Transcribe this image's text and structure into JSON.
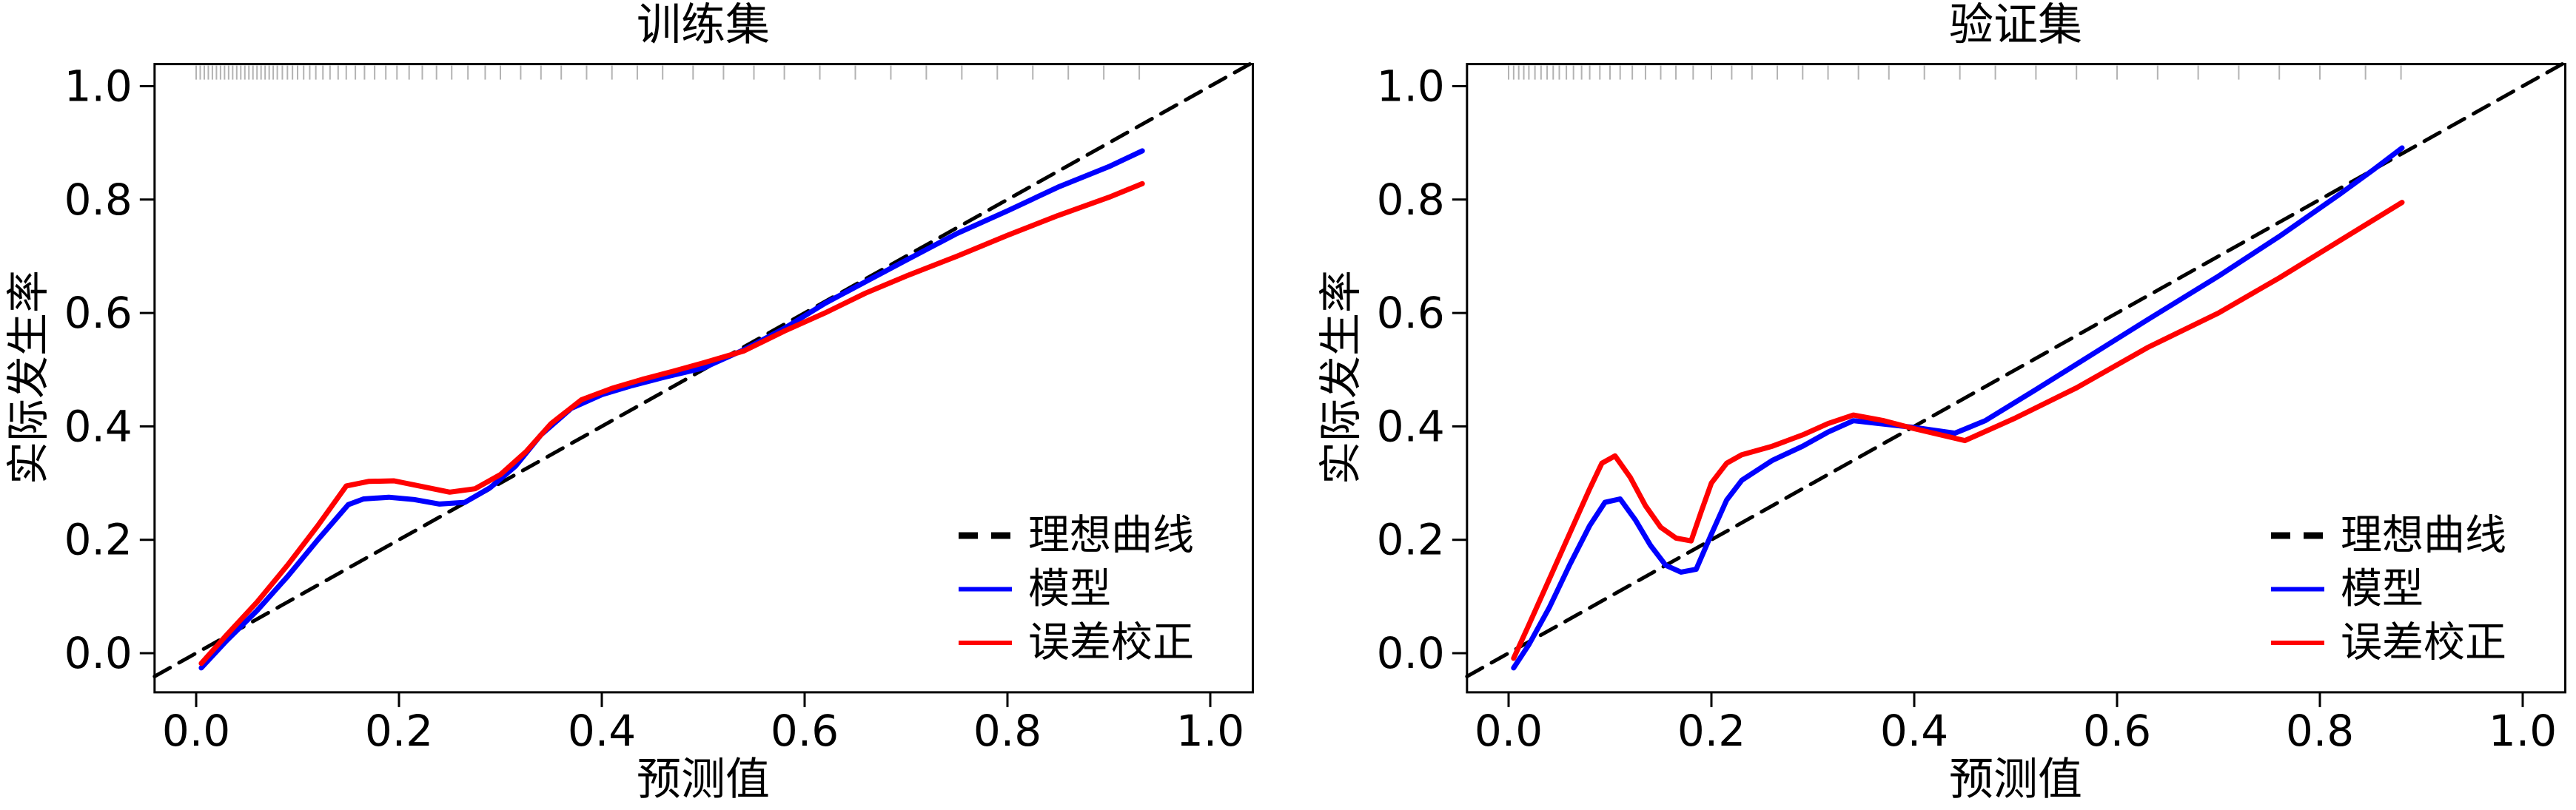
{
  "figure": {
    "background": "#ffffff",
    "colors": {
      "axis": "#000000",
      "ideal_line": "#000000",
      "model_line": "#0000ff",
      "corrected_line": "#ff0000",
      "rug": "#b3b3b3"
    },
    "legend_items": [
      {
        "label": "理想曲线",
        "style": "dashed",
        "color": "#000000"
      },
      {
        "label": "模型",
        "style": "solid",
        "color": "#0000ff"
      },
      {
        "label": "误差校正",
        "style": "solid",
        "color": "#ff0000"
      }
    ]
  },
  "chart_data": [
    {
      "type": "line",
      "title": "训练集",
      "xlabel": "预测值",
      "ylabel": "实际发生率",
      "xlim": [
        -0.041,
        1.042
      ],
      "ylim": [
        -0.069,
        1.039
      ],
      "x_ticks": [
        0.0,
        0.2,
        0.4,
        0.6,
        0.8,
        1.0
      ],
      "y_ticks": [
        0.0,
        0.2,
        0.4,
        0.6,
        0.8,
        1.0
      ],
      "grid": false,
      "legend_position": "bottom-right",
      "series": [
        {
          "name": "理想曲线",
          "style": "dashed",
          "color": "#000000",
          "points": [
            [
              -0.041,
              -0.041
            ],
            [
              1.039,
              1.039
            ]
          ]
        },
        {
          "name": "模型",
          "style": "solid",
          "color": "#0000ff",
          "points": [
            [
              0.005,
              -0.026
            ],
            [
              0.03,
              0.022
            ],
            [
              0.06,
              0.075
            ],
            [
              0.09,
              0.135
            ],
            [
              0.12,
              0.2
            ],
            [
              0.15,
              0.262
            ],
            [
              0.165,
              0.272
            ],
            [
              0.19,
              0.275
            ],
            [
              0.215,
              0.271
            ],
            [
              0.24,
              0.263
            ],
            [
              0.265,
              0.266
            ],
            [
              0.29,
              0.292
            ],
            [
              0.315,
              0.33
            ],
            [
              0.34,
              0.385
            ],
            [
              0.37,
              0.432
            ],
            [
              0.4,
              0.456
            ],
            [
              0.43,
              0.472
            ],
            [
              0.46,
              0.486
            ],
            [
              0.5,
              0.503
            ],
            [
              0.54,
              0.535
            ],
            [
              0.58,
              0.573
            ],
            [
              0.62,
              0.617
            ],
            [
              0.66,
              0.655
            ],
            [
              0.7,
              0.693
            ],
            [
              0.75,
              0.74
            ],
            [
              0.8,
              0.78
            ],
            [
              0.85,
              0.822
            ],
            [
              0.9,
              0.858
            ],
            [
              0.933,
              0.886
            ]
          ]
        },
        {
          "name": "误差校正",
          "style": "solid",
          "color": "#ff0000",
          "points": [
            [
              0.005,
              -0.018
            ],
            [
              0.03,
              0.032
            ],
            [
              0.06,
              0.09
            ],
            [
              0.09,
              0.155
            ],
            [
              0.12,
              0.225
            ],
            [
              0.148,
              0.295
            ],
            [
              0.17,
              0.303
            ],
            [
              0.195,
              0.304
            ],
            [
              0.22,
              0.295
            ],
            [
              0.25,
              0.284
            ],
            [
              0.275,
              0.29
            ],
            [
              0.3,
              0.315
            ],
            [
              0.325,
              0.355
            ],
            [
              0.35,
              0.405
            ],
            [
              0.38,
              0.447
            ],
            [
              0.41,
              0.467
            ],
            [
              0.44,
              0.483
            ],
            [
              0.47,
              0.497
            ],
            [
              0.5,
              0.512
            ],
            [
              0.54,
              0.533
            ],
            [
              0.58,
              0.568
            ],
            [
              0.62,
              0.6
            ],
            [
              0.66,
              0.635
            ],
            [
              0.7,
              0.665
            ],
            [
              0.75,
              0.7
            ],
            [
              0.8,
              0.737
            ],
            [
              0.85,
              0.772
            ],
            [
              0.9,
              0.804
            ],
            [
              0.933,
              0.828
            ]
          ]
        }
      ],
      "rug_x": [
        0.0,
        0.004,
        0.008,
        0.012,
        0.016,
        0.02,
        0.024,
        0.028,
        0.032,
        0.036,
        0.04,
        0.044,
        0.048,
        0.052,
        0.056,
        0.06,
        0.064,
        0.068,
        0.072,
        0.076,
        0.08,
        0.085,
        0.09,
        0.095,
        0.1,
        0.106,
        0.112,
        0.118,
        0.125,
        0.132,
        0.14,
        0.148,
        0.157,
        0.166,
        0.176,
        0.187,
        0.198,
        0.21,
        0.223,
        0.237,
        0.252,
        0.268,
        0.285,
        0.3,
        0.32,
        0.34,
        0.36,
        0.385,
        0.41,
        0.435,
        0.46,
        0.49,
        0.52,
        0.55,
        0.58,
        0.615,
        0.65,
        0.685,
        0.72,
        0.755,
        0.79,
        0.825,
        0.86,
        0.895,
        0.93
      ]
    },
    {
      "type": "line",
      "title": "验证集",
      "xlabel": "预测值",
      "ylabel": "实际发生率",
      "xlim": [
        -0.041,
        1.042
      ],
      "ylim": [
        -0.069,
        1.039
      ],
      "x_ticks": [
        0.0,
        0.2,
        0.4,
        0.6,
        0.8,
        1.0
      ],
      "y_ticks": [
        0.0,
        0.2,
        0.4,
        0.6,
        0.8,
        1.0
      ],
      "grid": false,
      "legend_position": "bottom-right",
      "series": [
        {
          "name": "理想曲线",
          "style": "dashed",
          "color": "#000000",
          "points": [
            [
              -0.041,
              -0.041
            ],
            [
              1.039,
              1.039
            ]
          ]
        },
        {
          "name": "模型",
          "style": "solid",
          "color": "#0000ff",
          "points": [
            [
              0.005,
              -0.026
            ],
            [
              0.02,
              0.015
            ],
            [
              0.04,
              0.08
            ],
            [
              0.06,
              0.155
            ],
            [
              0.08,
              0.225
            ],
            [
              0.095,
              0.266
            ],
            [
              0.11,
              0.272
            ],
            [
              0.125,
              0.235
            ],
            [
              0.14,
              0.19
            ],
            [
              0.155,
              0.155
            ],
            [
              0.17,
              0.143
            ],
            [
              0.185,
              0.148
            ],
            [
              0.2,
              0.21
            ],
            [
              0.215,
              0.27
            ],
            [
              0.23,
              0.305
            ],
            [
              0.26,
              0.34
            ],
            [
              0.29,
              0.365
            ],
            [
              0.315,
              0.39
            ],
            [
              0.34,
              0.41
            ],
            [
              0.37,
              0.404
            ],
            [
              0.4,
              0.398
            ],
            [
              0.44,
              0.388
            ],
            [
              0.47,
              0.41
            ],
            [
              0.52,
              0.465
            ],
            [
              0.58,
              0.532
            ],
            [
              0.63,
              0.588
            ],
            [
              0.7,
              0.665
            ],
            [
              0.76,
              0.735
            ],
            [
              0.82,
              0.81
            ],
            [
              0.853,
              0.853
            ],
            [
              0.881,
              0.891
            ]
          ]
        },
        {
          "name": "误差校正",
          "style": "solid",
          "color": "#ff0000",
          "points": [
            [
              0.005,
              -0.009
            ],
            [
              0.02,
              0.05
            ],
            [
              0.04,
              0.13
            ],
            [
              0.06,
              0.21
            ],
            [
              0.08,
              0.29
            ],
            [
              0.092,
              0.335
            ],
            [
              0.105,
              0.348
            ],
            [
              0.12,
              0.31
            ],
            [
              0.135,
              0.26
            ],
            [
              0.15,
              0.222
            ],
            [
              0.165,
              0.203
            ],
            [
              0.18,
              0.198
            ],
            [
              0.19,
              0.25
            ],
            [
              0.2,
              0.3
            ],
            [
              0.215,
              0.335
            ],
            [
              0.23,
              0.35
            ],
            [
              0.26,
              0.365
            ],
            [
              0.29,
              0.385
            ],
            [
              0.315,
              0.405
            ],
            [
              0.34,
              0.42
            ],
            [
              0.37,
              0.41
            ],
            [
              0.4,
              0.396
            ],
            [
              0.45,
              0.375
            ],
            [
              0.5,
              0.415
            ],
            [
              0.56,
              0.468
            ],
            [
              0.63,
              0.539
            ],
            [
              0.7,
              0.6
            ],
            [
              0.76,
              0.662
            ],
            [
              0.82,
              0.728
            ],
            [
              0.881,
              0.795
            ]
          ]
        }
      ],
      "rug_x": [
        0.0,
        0.005,
        0.01,
        0.015,
        0.02,
        0.026,
        0.032,
        0.038,
        0.044,
        0.05,
        0.057,
        0.064,
        0.072,
        0.08,
        0.09,
        0.1,
        0.11,
        0.122,
        0.135,
        0.15,
        0.165,
        0.182,
        0.2,
        0.22,
        0.24,
        0.265,
        0.29,
        0.315,
        0.345,
        0.375,
        0.41,
        0.445,
        0.48,
        0.52,
        0.56,
        0.6,
        0.64,
        0.68,
        0.72,
        0.76,
        0.8,
        0.845,
        0.88
      ]
    }
  ]
}
